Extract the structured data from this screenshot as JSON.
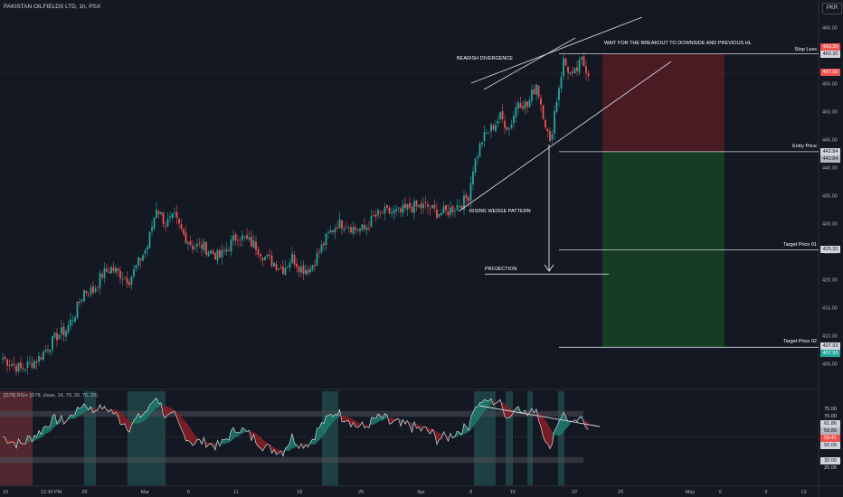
{
  "header": {
    "symbol_title": "PAKISTAN OILFIELDS LTD, 1h, PSX",
    "currency": "PKR"
  },
  "colors": {
    "background": "#141823",
    "up": "#26a69a",
    "down": "#ef5350",
    "text": "#d1d4dc",
    "axis_text": "#b2b5be",
    "stop_zone": "#4a1b22",
    "target_zone": "#163d24",
    "rsi_up_fill": "#1f7a6c",
    "rsi_down_fill": "#8a1e26",
    "highlight": "#3aa892"
  },
  "annotations": {
    "bearish_divergence": "BEARISH DIVERGENCE",
    "wait_breakout": "WAIT FOR THE BREAKOUT TO DOWNSIDE AND PREVIOUS HL",
    "rising_wedge": "RISING WEDGE PATTERN",
    "projection": "PROJECTION",
    "stop_loss": "Stop Loss",
    "entry_price": "Entry Price",
    "target_01": "Target Price 01",
    "target_02": "Target Price 02"
  },
  "price_badges": {
    "stop_top": "460.30",
    "stop": "460.30",
    "last": "457.00",
    "entry_top": "442.84",
    "entry": "442.84",
    "target1": "425.32",
    "target2_top": "407.93",
    "target2": "407.93"
  },
  "rsi": {
    "legend": "[D78] RSI+ (D78, close, 14, 70, 30, 75, 25)",
    "badges": {
      "b75": "75.00",
      "b70": "70.00",
      "b61": "61.86",
      "b59": "59.86",
      "cur": "58.41",
      "b50": "50.00",
      "b30": "30.00",
      "b25": "25.00"
    }
  },
  "x_axis": {
    "ticks": [
      {
        "label": "19",
        "pos": 0.003
      },
      {
        "label": "12:30 PM",
        "pos": 0.048
      },
      {
        "label": "26",
        "pos": 0.097
      },
      {
        "label": "Mar",
        "pos": 0.167
      },
      {
        "label": "6",
        "pos": 0.222
      },
      {
        "label": "11",
        "pos": 0.277
      },
      {
        "label": "18",
        "pos": 0.352
      },
      {
        "label": "25",
        "pos": 0.425
      },
      {
        "label": "Apr",
        "pos": 0.495
      },
      {
        "label": "8",
        "pos": 0.557
      },
      {
        "label": "16",
        "pos": 0.605
      },
      {
        "label": "22",
        "pos": 0.678
      },
      {
        "label": "25",
        "pos": 0.733
      },
      {
        "label": "May",
        "pos": 0.813
      },
      {
        "label": "6",
        "pos": 0.853
      },
      {
        "label": "9",
        "pos": 0.907
      },
      {
        "label": "13",
        "pos": 0.95
      }
    ]
  },
  "chart_data": {
    "type": "candlestick",
    "title": "PAKISTAN OILFIELDS LTD, 1h, PSX",
    "currency": "PKR",
    "y_ticks": [
      405,
      410,
      415,
      420,
      425,
      430,
      435,
      440,
      445,
      450,
      455,
      460,
      465
    ],
    "ylim": [
      403,
      467
    ],
    "grid": false,
    "anchors": [
      [
        0,
        406
      ],
      [
        4,
        405
      ],
      [
        8,
        404
      ],
      [
        12,
        405
      ],
      [
        16,
        406
      ],
      [
        20,
        408
      ],
      [
        24,
        410
      ],
      [
        28,
        411
      ],
      [
        32,
        414
      ],
      [
        36,
        418
      ],
      [
        40,
        418
      ],
      [
        44,
        421
      ],
      [
        48,
        422
      ],
      [
        52,
        421
      ],
      [
        56,
        420
      ],
      [
        60,
        423
      ],
      [
        64,
        426
      ],
      [
        68,
        433
      ],
      [
        72,
        430
      ],
      [
        76,
        431
      ],
      [
        80,
        428
      ],
      [
        84,
        426
      ],
      [
        88,
        426
      ],
      [
        92,
        425
      ],
      [
        96,
        424
      ],
      [
        100,
        426
      ],
      [
        104,
        428
      ],
      [
        108,
        427
      ],
      [
        112,
        426
      ],
      [
        116,
        424
      ],
      [
        120,
        423
      ],
      [
        124,
        422
      ],
      [
        128,
        424
      ],
      [
        132,
        422
      ],
      [
        136,
        422
      ],
      [
        140,
        425
      ],
      [
        144,
        428
      ],
      [
        148,
        430
      ],
      [
        152,
        430
      ],
      [
        156,
        429
      ],
      [
        160,
        429
      ],
      [
        164,
        431
      ],
      [
        168,
        432
      ],
      [
        172,
        432
      ],
      [
        176,
        432
      ],
      [
        180,
        433
      ],
      [
        184,
        433
      ],
      [
        188,
        433
      ],
      [
        192,
        432
      ],
      [
        196,
        432
      ],
      [
        200,
        433
      ],
      [
        204,
        434
      ],
      [
        206,
        435
      ],
      [
        208,
        440
      ],
      [
        212,
        445
      ],
      [
        216,
        447
      ],
      [
        220,
        449
      ],
      [
        224,
        447
      ],
      [
        228,
        452
      ],
      [
        232,
        451
      ],
      [
        236,
        455
      ],
      [
        240,
        448
      ],
      [
        242,
        444
      ],
      [
        244,
        450
      ],
      [
        248,
        459
      ],
      [
        252,
        456
      ],
      [
        256,
        459
      ],
      [
        259,
        457
      ]
    ],
    "levels": {
      "stop_loss": 460.3,
      "entry": 442.84,
      "target_01": 425.32,
      "target_02": 407.93,
      "last": 457.0,
      "projection": 421.0
    },
    "rsi_ticks": [
      75,
      70,
      61.86,
      59.86,
      58.41,
      50,
      30,
      25
    ],
    "rsi_ylim": [
      20,
      80
    ]
  }
}
